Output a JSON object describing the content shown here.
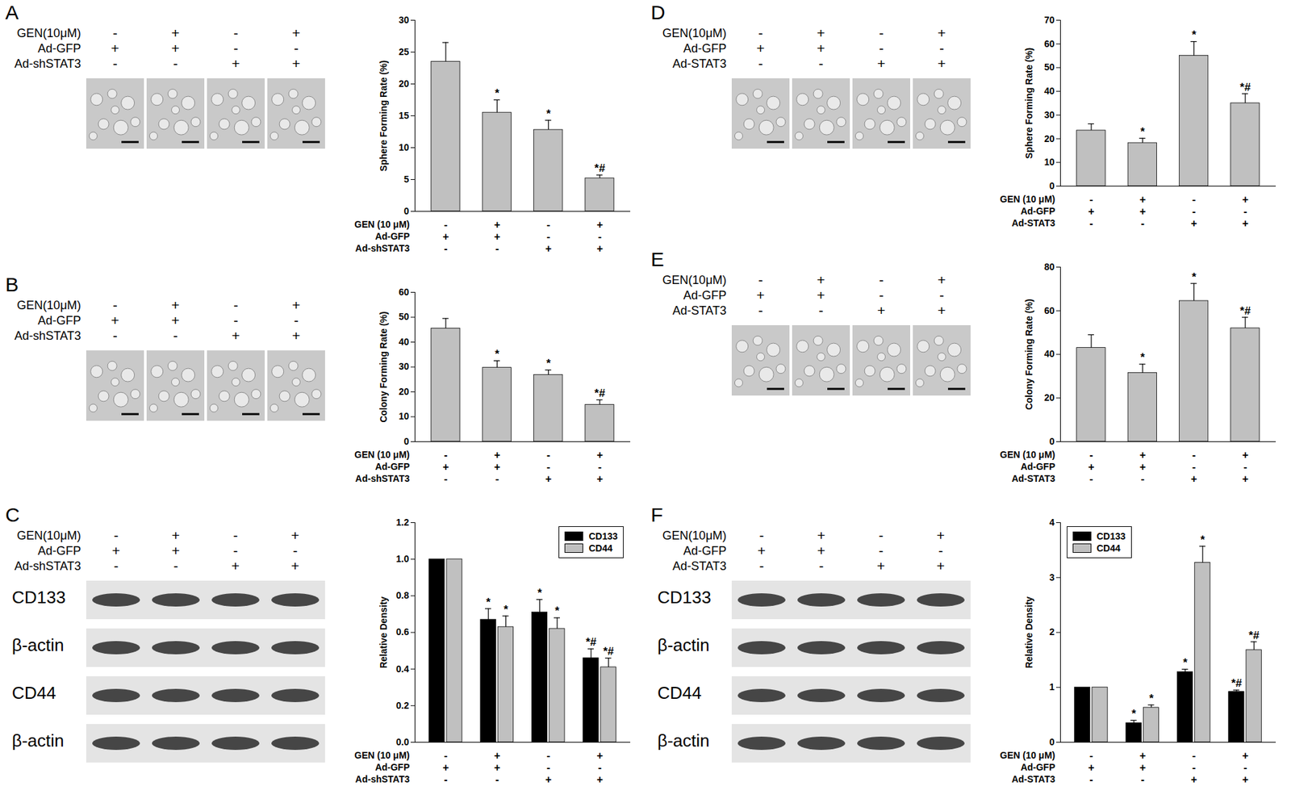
{
  "chart_data": [
    {
      "panel": "A",
      "type": "bar",
      "image_conditions": [
        {
          "label": "GEN(10μM)",
          "signs": [
            "-",
            "+",
            "-",
            "+"
          ]
        },
        {
          "label": "Ad-GFP",
          "signs": [
            "+",
            "+",
            "-",
            "-"
          ]
        },
        {
          "label": "Ad-shSTAT3",
          "signs": [
            "-",
            "-",
            "+",
            "+"
          ]
        }
      ],
      "ylabel": "Sphere Forming Rate (%)",
      "categories": [
        null,
        null,
        null,
        null
      ],
      "conditions": [
        {
          "label": "GEN (10 μM)",
          "signs": [
            "-",
            "+",
            "-",
            "+"
          ]
        },
        {
          "label": "Ad-GFP",
          "signs": [
            "+",
            "+",
            "-",
            "-"
          ]
        },
        {
          "label": "Ad-shSTAT3",
          "signs": [
            "-",
            "-",
            "+",
            "+"
          ]
        }
      ],
      "values": [
        23.5,
        15.5,
        12.8,
        5.2
      ],
      "errors": [
        3.0,
        2.0,
        1.5,
        0.5
      ],
      "annotations": [
        null,
        "*",
        "*",
        "*#"
      ],
      "color": "#c0c0c0",
      "ylim": [
        0,
        30
      ],
      "yticks": [
        0,
        5,
        10,
        15,
        20,
        25,
        30
      ]
    },
    {
      "panel": "B",
      "type": "bar",
      "image_conditions": [
        {
          "label": "GEN(10μM)",
          "signs": [
            "-",
            "+",
            "-",
            "+"
          ]
        },
        {
          "label": "Ad-GFP",
          "signs": [
            "+",
            "+",
            "-",
            "-"
          ]
        },
        {
          "label": "Ad-shSTAT3",
          "signs": [
            "-",
            "-",
            "+",
            "+"
          ]
        }
      ],
      "ylabel": "Colony Forming Rate (%)",
      "categories": [
        null,
        null,
        null,
        null
      ],
      "conditions": [
        {
          "label": "GEN (10 μM)",
          "signs": [
            "-",
            "+",
            "-",
            "+"
          ]
        },
        {
          "label": "Ad-GFP",
          "signs": [
            "+",
            "+",
            "-",
            "-"
          ]
        },
        {
          "label": "Ad-shSTAT3",
          "signs": [
            "-",
            "-",
            "+",
            "+"
          ]
        }
      ],
      "values": [
        45.5,
        29.7,
        26.8,
        14.8
      ],
      "errors": [
        4.0,
        2.8,
        2.0,
        2.0
      ],
      "annotations": [
        null,
        "*",
        "*",
        "*#"
      ],
      "color": "#c0c0c0",
      "ylim": [
        0,
        60
      ],
      "yticks": [
        0,
        10,
        20,
        30,
        40,
        50,
        60
      ]
    },
    {
      "panel": "C",
      "type": "bar",
      "image_conditions": [
        {
          "label": "GEN(10μM)",
          "signs": [
            "-",
            "+",
            "-",
            "+"
          ]
        },
        {
          "label": "Ad-GFP",
          "signs": [
            "+",
            "+",
            "-",
            "-"
          ]
        },
        {
          "label": "Ad-shSTAT3",
          "signs": [
            "-",
            "-",
            "+",
            "+"
          ]
        }
      ],
      "blots": [
        "CD133",
        "β-actin",
        "CD44",
        "β-actin"
      ],
      "ylabel": "Relative Density",
      "categories": [
        null,
        null,
        null,
        null
      ],
      "conditions": [
        {
          "label": "GEN (10 μM)",
          "signs": [
            "-",
            "+",
            "-",
            "+"
          ]
        },
        {
          "label": "Ad-GFP",
          "signs": [
            "+",
            "+",
            "-",
            "-"
          ]
        },
        {
          "label": "Ad-shSTAT3",
          "signs": [
            "-",
            "-",
            "+",
            "+"
          ]
        }
      ],
      "series": [
        {
          "name": "CD133",
          "color": "#000000",
          "values": [
            1.0,
            0.67,
            0.71,
            0.46
          ],
          "errors": [
            null,
            0.06,
            0.07,
            0.05
          ],
          "annotations": [
            null,
            "*",
            "*",
            "*#"
          ]
        },
        {
          "name": "CD44",
          "color": "#c0c0c0",
          "values": [
            1.0,
            0.63,
            0.62,
            0.41
          ],
          "errors": [
            null,
            0.06,
            0.06,
            0.05
          ],
          "annotations": [
            null,
            "*",
            "*",
            "*#"
          ]
        }
      ],
      "legend": "top-right",
      "ylim": [
        0,
        1.2
      ],
      "yticks": [
        {
          "value": 0,
          "label": "0.0"
        },
        0.2,
        0.4,
        0.6,
        0.8,
        {
          "value": 1,
          "label": "1.0"
        },
        1.2
      ]
    },
    {
      "panel": "D",
      "type": "bar",
      "image_conditions": [
        {
          "label": "GEN(10μM)",
          "signs": [
            "-",
            "+",
            "-",
            "+"
          ]
        },
        {
          "label": "Ad-GFP",
          "signs": [
            "+",
            "+",
            "-",
            "-"
          ]
        },
        {
          "label": "Ad-STAT3",
          "signs": [
            "-",
            "-",
            "+",
            "+"
          ]
        }
      ],
      "ylabel": "Sphere Forming Rate (%)",
      "categories": [
        null,
        null,
        null,
        null
      ],
      "conditions": [
        {
          "label": "GEN (10 μM)",
          "signs": [
            "-",
            "+",
            "-",
            "+"
          ]
        },
        {
          "label": "Ad-GFP",
          "signs": [
            "+",
            "+",
            "-",
            "-"
          ]
        },
        {
          "label": "Ad-STAT3",
          "signs": [
            "-",
            "-",
            "+",
            "+"
          ]
        }
      ],
      "values": [
        23.5,
        18.2,
        55.0,
        35.0
      ],
      "errors": [
        2.8,
        2.0,
        6.0,
        4.0
      ],
      "annotations": [
        null,
        "*",
        "*",
        "*#"
      ],
      "color": "#c0c0c0",
      "ylim": [
        0,
        70
      ],
      "yticks": [
        0,
        10,
        20,
        30,
        40,
        50,
        60,
        70
      ]
    },
    {
      "panel": "E",
      "type": "bar",
      "image_conditions": [
        {
          "label": "GEN(10μM)",
          "signs": [
            "-",
            "+",
            "-",
            "+"
          ]
        },
        {
          "label": "Ad-GFP",
          "signs": [
            "+",
            "+",
            "-",
            "-"
          ]
        },
        {
          "label": "Ad-STAT3",
          "signs": [
            "-",
            "-",
            "+",
            "+"
          ]
        }
      ],
      "ylabel": "Colony Forming Rate (%)",
      "categories": [
        null,
        null,
        null,
        null
      ],
      "conditions": [
        {
          "label": "GEN (10 μM)",
          "signs": [
            "-",
            "+",
            "-",
            "+"
          ]
        },
        {
          "label": "Ad-GFP",
          "signs": [
            "+",
            "+",
            "-",
            "-"
          ]
        },
        {
          "label": "Ad-STAT3",
          "signs": [
            "-",
            "-",
            "+",
            "+"
          ]
        }
      ],
      "values": [
        43.0,
        31.5,
        64.5,
        52.0
      ],
      "errors": [
        6.0,
        4.0,
        8.0,
        5.0
      ],
      "annotations": [
        null,
        "*",
        "*",
        "*#"
      ],
      "color": "#c0c0c0",
      "ylim": [
        0,
        80
      ],
      "yticks": [
        0,
        20,
        40,
        60,
        80
      ]
    },
    {
      "panel": "F",
      "type": "bar",
      "image_conditions": [
        {
          "label": "GEN(10μM)",
          "signs": [
            "-",
            "+",
            "-",
            "+"
          ]
        },
        {
          "label": "Ad-GFP",
          "signs": [
            "+",
            "+",
            "-",
            "-"
          ]
        },
        {
          "label": "Ad-STAT3",
          "signs": [
            "-",
            "-",
            "+",
            "+"
          ]
        }
      ],
      "blots": [
        "CD133",
        "β-actin",
        "CD44",
        "β-actin"
      ],
      "ylabel": "Relative Density",
      "categories": [
        null,
        null,
        null,
        null
      ],
      "conditions": [
        {
          "label": "GEN (10 μM)",
          "signs": [
            "-",
            "+",
            "-",
            "+"
          ]
        },
        {
          "label": "Ad-GFP",
          "signs": [
            "+",
            "+",
            "-",
            "-"
          ]
        },
        {
          "label": "Ad-STAT3",
          "signs": [
            "-",
            "-",
            "+",
            "+"
          ]
        }
      ],
      "series": [
        {
          "name": "CD133",
          "color": "#000000",
          "values": [
            1.0,
            0.35,
            1.28,
            0.92
          ],
          "errors": [
            null,
            0.05,
            0.05,
            0.03
          ],
          "annotations": [
            null,
            "*",
            "*",
            "*#"
          ]
        },
        {
          "name": "CD44",
          "color": "#c0c0c0",
          "values": [
            1.0,
            0.63,
            3.27,
            1.68
          ],
          "errors": [
            null,
            0.05,
            0.3,
            0.15
          ],
          "annotations": [
            null,
            "*",
            "*",
            "*#"
          ]
        }
      ],
      "legend": "top-left",
      "ylim": [
        0,
        4
      ],
      "yticks": [
        0,
        1,
        2,
        3,
        4
      ]
    }
  ]
}
